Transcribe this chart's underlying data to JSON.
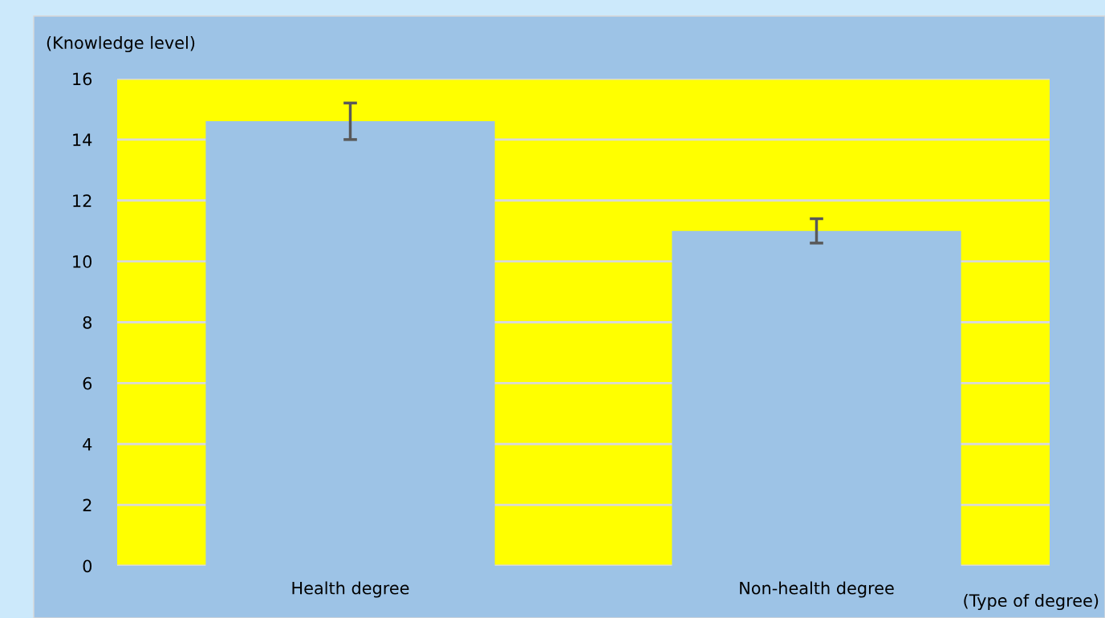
{
  "chart_data": {
    "type": "bar",
    "ylabel": "(Knowledge level)",
    "xlabel": "(Type of degree)",
    "categories": [
      "Health degree",
      "Non-health degree"
    ],
    "values": [
      14.6,
      11.0
    ],
    "errors": [
      0.6,
      0.4
    ],
    "color": "#9dc3e6",
    "ylim": [
      0,
      16
    ],
    "yticks": [
      0,
      2,
      4,
      6,
      8,
      10,
      12,
      14,
      16
    ],
    "grid": "y",
    "bands": [
      {
        "axis": "y",
        "from": 0,
        "to": 16,
        "color": "#ffff00"
      }
    ]
  }
}
